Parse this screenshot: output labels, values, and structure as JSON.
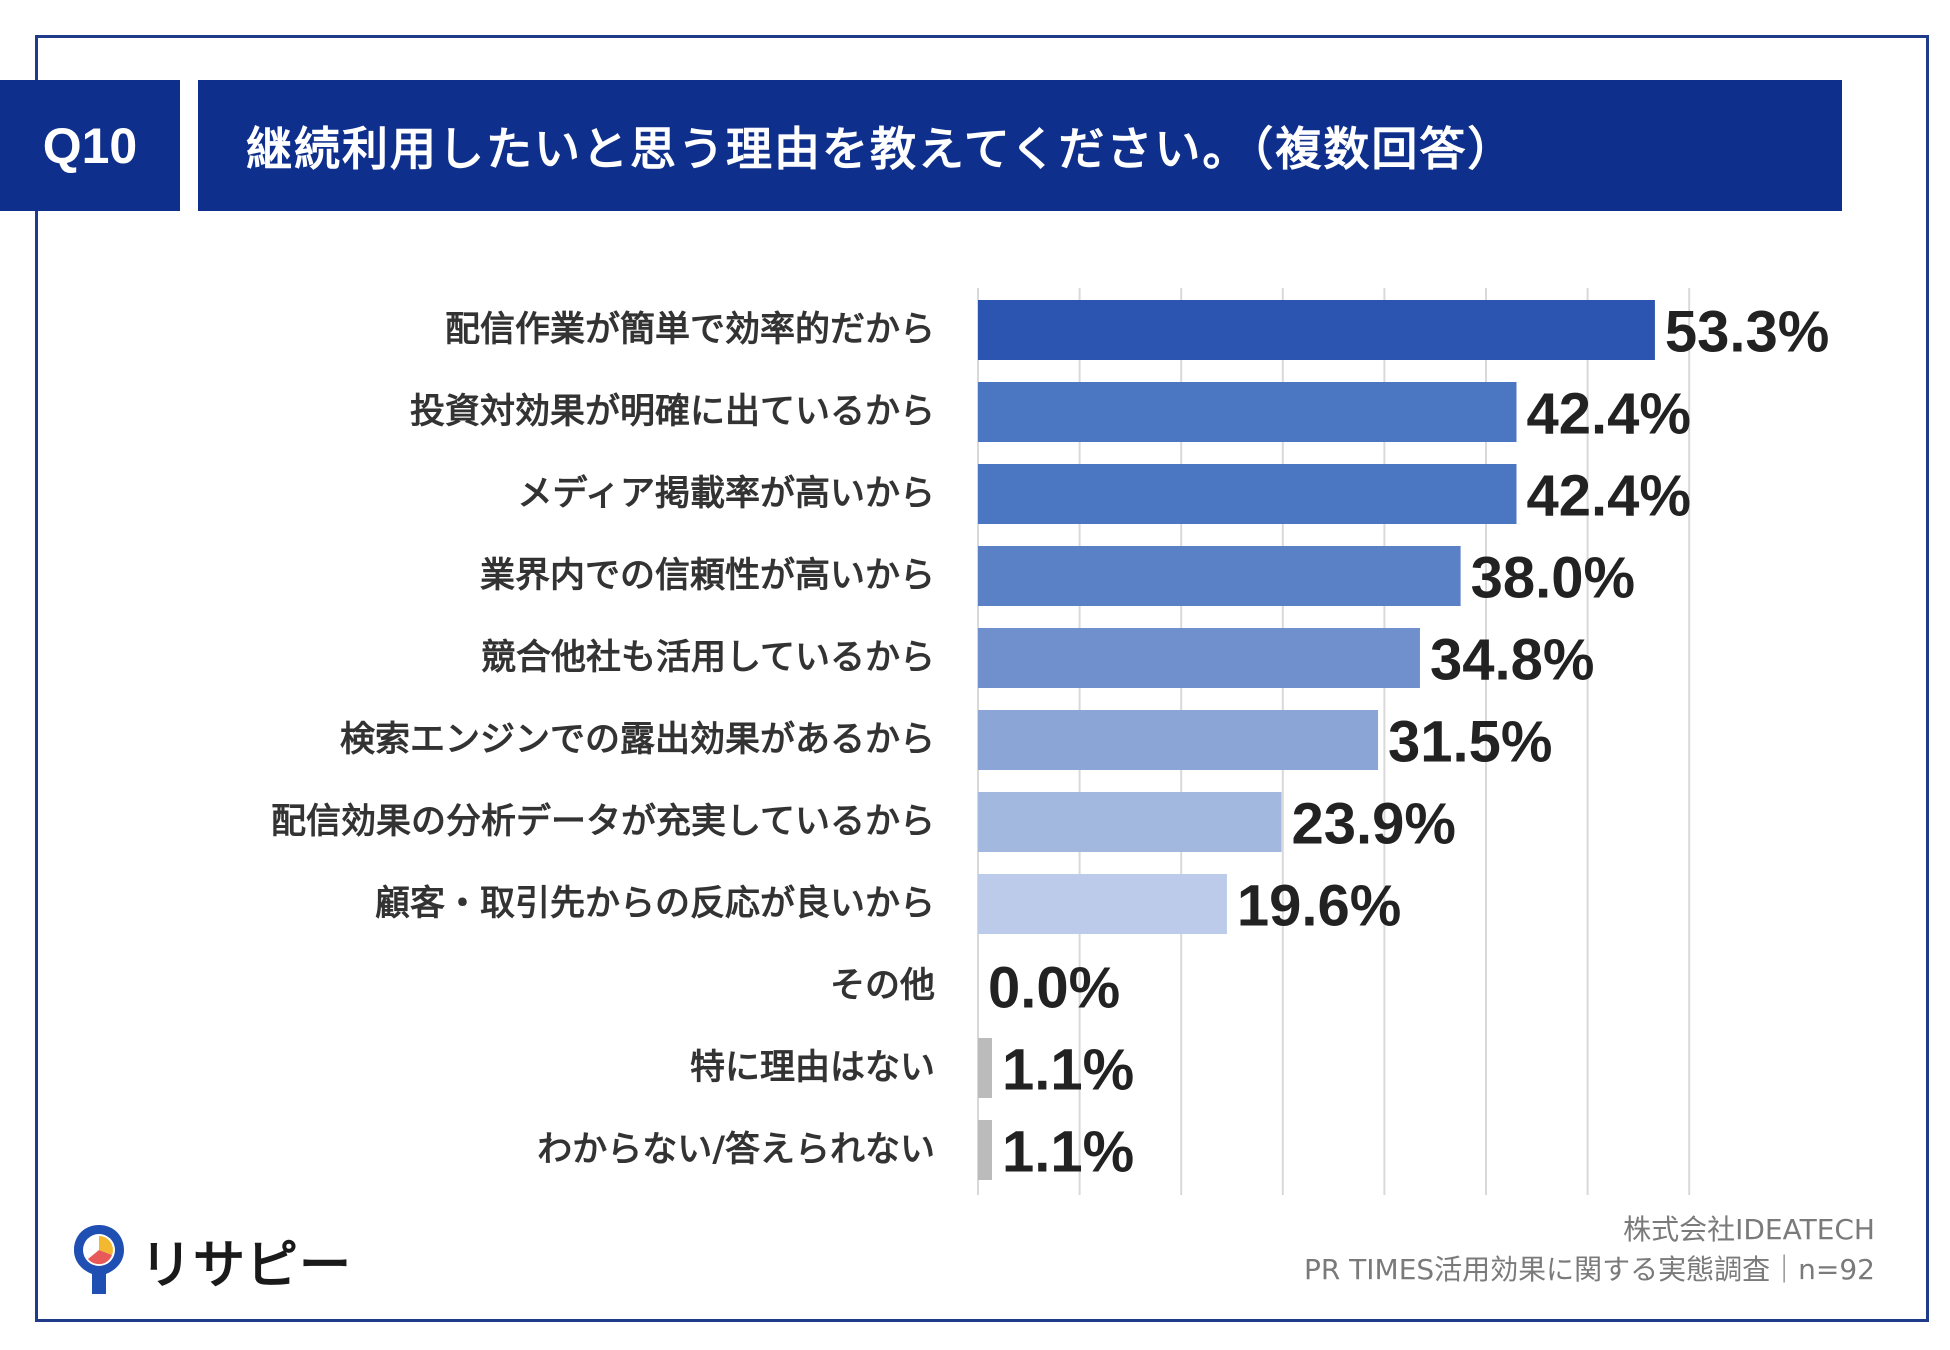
{
  "header": {
    "question_no": "Q10",
    "title": "継続利用したいと思う理由を教えてください。（複数回答）"
  },
  "chart_data": {
    "type": "bar",
    "orientation": "horizontal",
    "categories": [
      "配信作業が簡単で効率的だから",
      "投資対効果が明確に出ているから",
      "メディア掲載率が高いから",
      "業界内での信頼性が高いから",
      "競合他社も活用しているから",
      "検索エンジンでの露出効果があるから",
      "配信効果の分析データが充実しているから",
      "顧客・取引先からの反応が良いから",
      "その他",
      "特に理由はない",
      "わからない/答えられない"
    ],
    "values": [
      53.3,
      42.4,
      42.4,
      38.0,
      34.8,
      31.5,
      23.9,
      19.6,
      0.0,
      1.1,
      1.1
    ],
    "value_labels": [
      "53.3%",
      "42.4%",
      "42.4%",
      "38.0%",
      "34.8%",
      "31.5%",
      "23.9%",
      "19.6%",
      "0.0%",
      "1.1%",
      "1.1%"
    ],
    "xlim": [
      0,
      60
    ],
    "grid": true,
    "colors": [
      "#2b55b0",
      "#4b76c2",
      "#4b76c2",
      "#5a80c6",
      "#6f90cc",
      "#8aa5d6",
      "#a3b8df",
      "#bccbea",
      "#bbbbbb",
      "#bbbbbb",
      "#bbbbbb"
    ]
  },
  "footer": {
    "company": "株式会社IDEATECH",
    "survey": "PR TIMES活用効果に関する実態調査｜n=92"
  },
  "brand": {
    "name": "リサピー",
    "logo_icon": "map-pin-icon",
    "logo_colors": [
      "#1f4fb3",
      "#f2b830",
      "#e85a5a"
    ]
  }
}
